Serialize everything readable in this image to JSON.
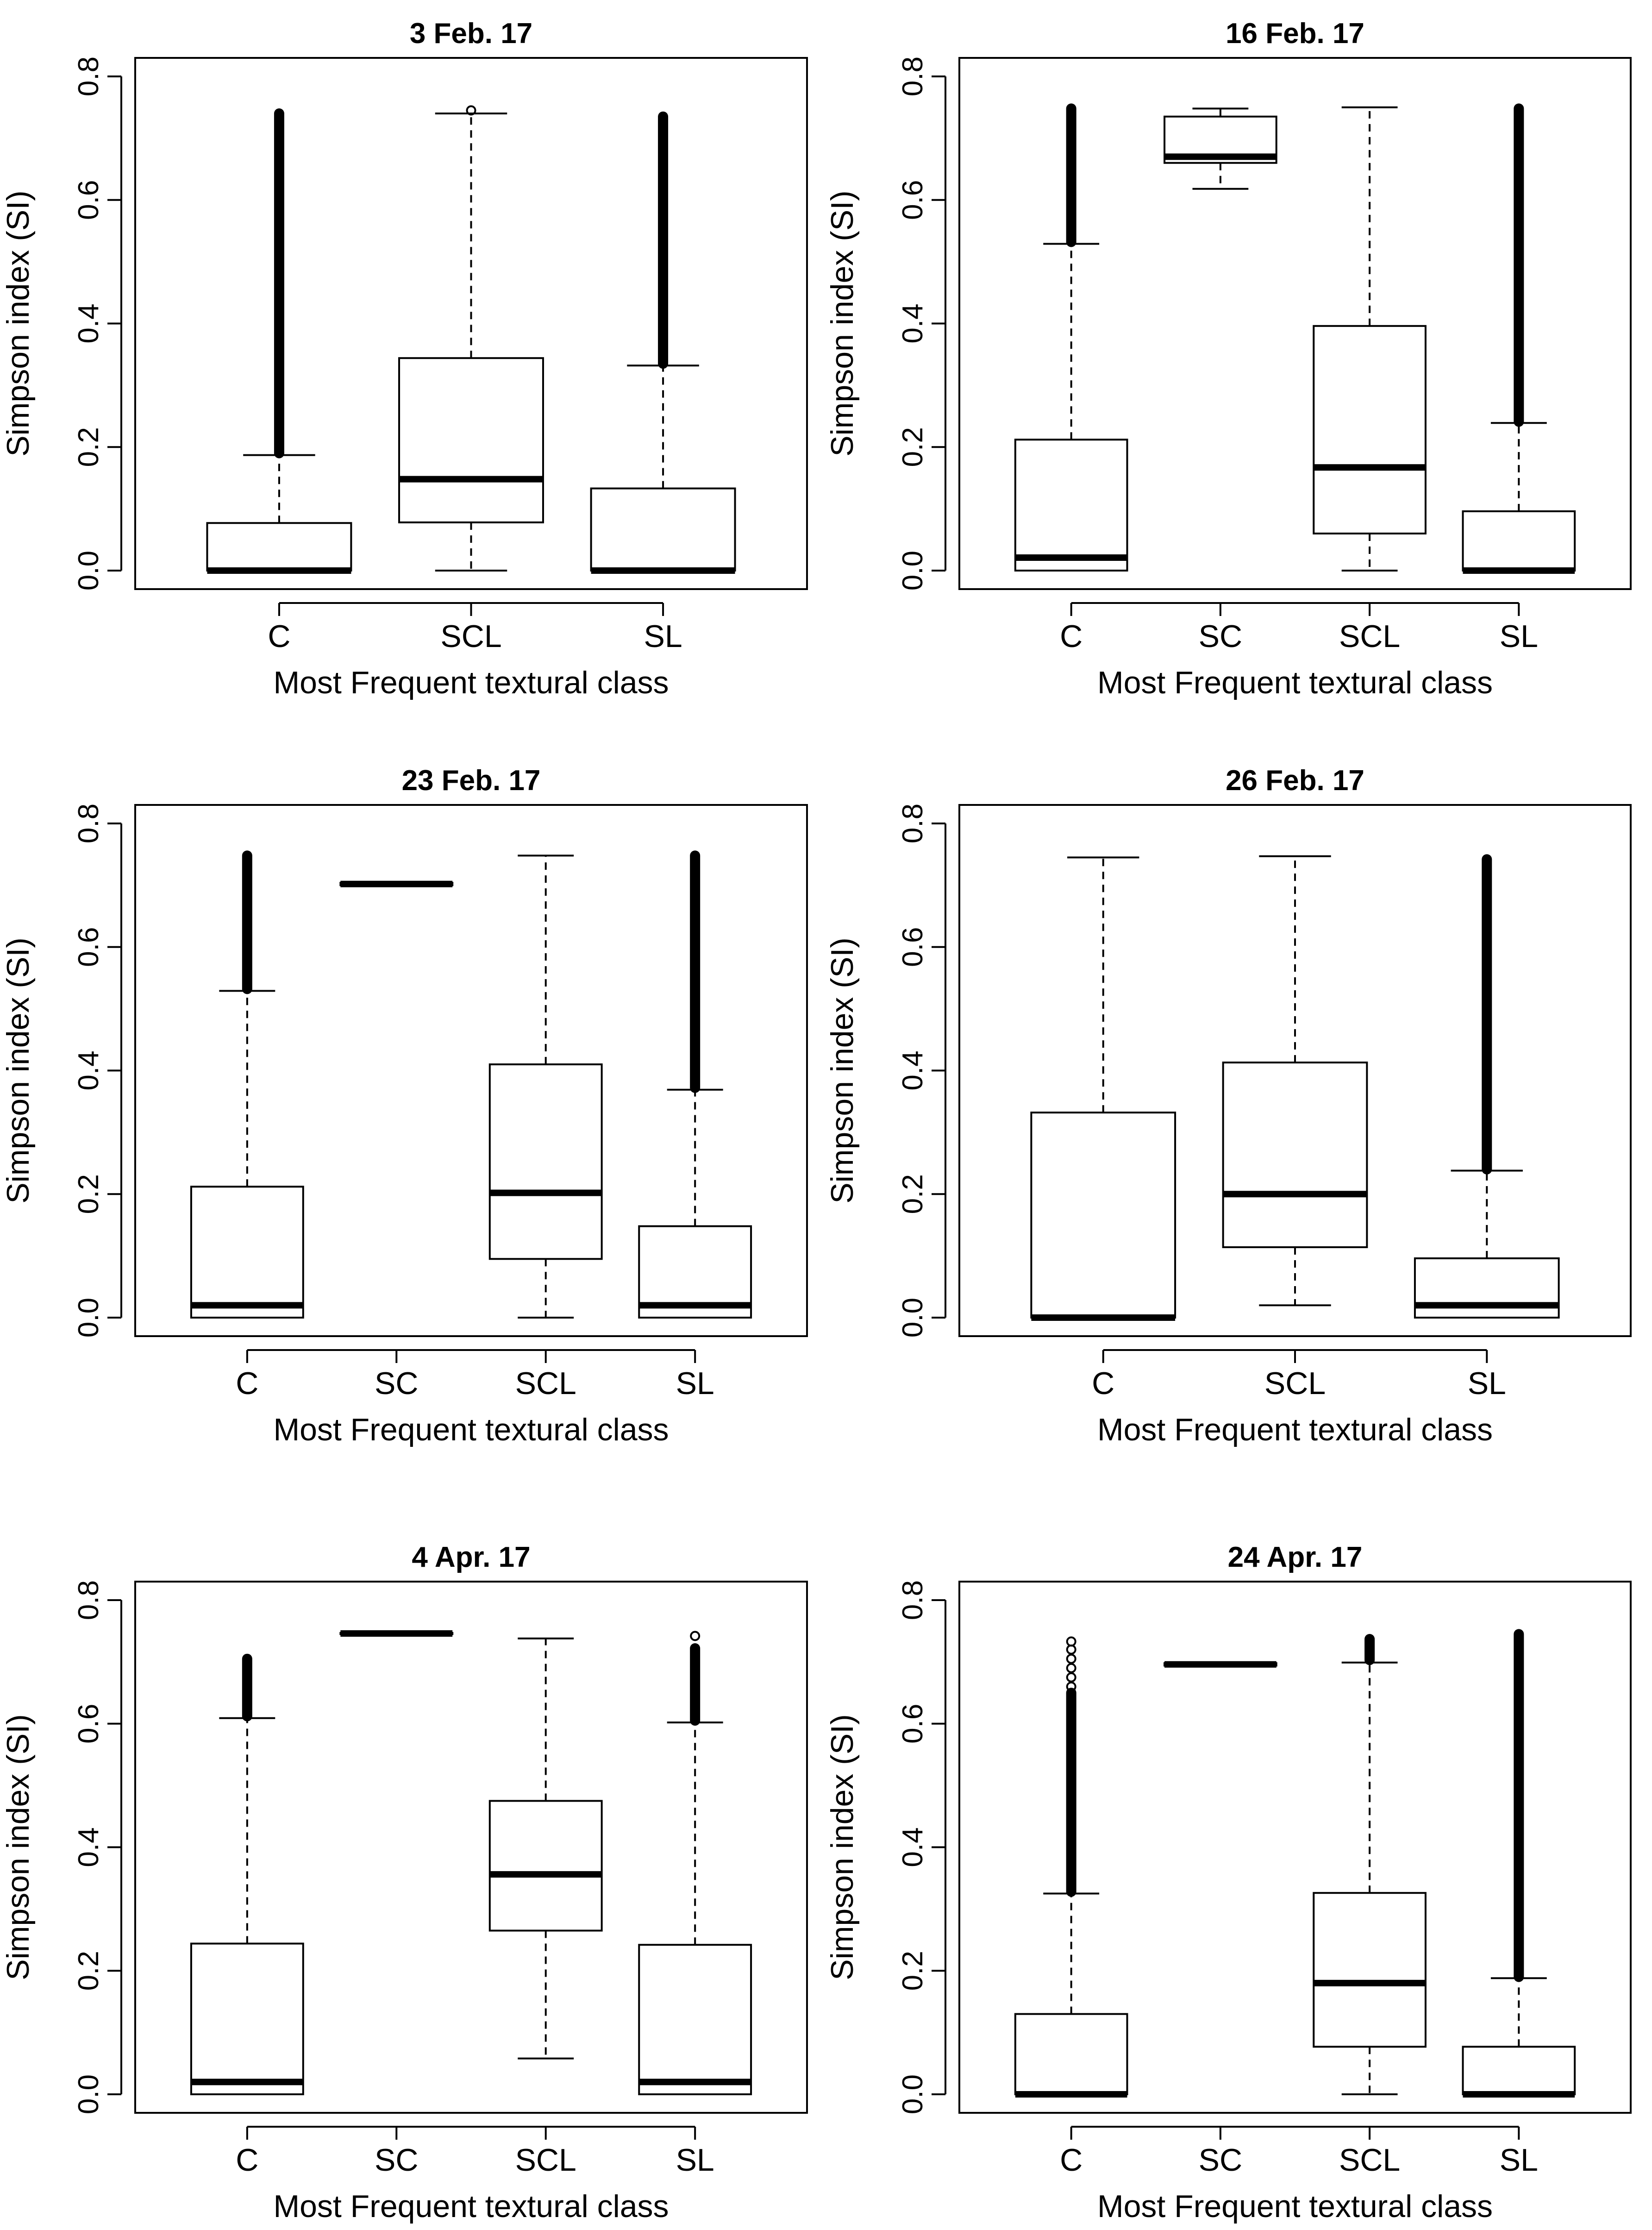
{
  "chart_data": [
    {
      "type": "boxplot",
      "title": "3 Feb. 17",
      "xlabel": "Most Frequent textural class",
      "ylabel": "Simpson index (SI)",
      "ylim": [
        -0.03,
        0.83
      ],
      "yticks": [
        "0.0",
        "0.2",
        "0.4",
        "0.6",
        "0.8"
      ],
      "categories": [
        "C",
        "SCL",
        "SL"
      ],
      "boxes": [
        {
          "q1": 0.0,
          "median": 0.0,
          "q3": 0.077,
          "whisker_low": 0.0,
          "whisker_high": 0.187,
          "outlier_low": 0.19,
          "outlier_high": 0.74,
          "dense_outliers": true
        },
        {
          "q1": 0.078,
          "median": 0.148,
          "q3": 0.344,
          "whisker_low": 0.0,
          "whisker_high": 0.74,
          "outlier_low": 0.745,
          "outlier_high": 0.745,
          "dense_outliers": false
        },
        {
          "q1": 0.0,
          "median": 0.0,
          "q3": 0.133,
          "whisker_low": 0.0,
          "whisker_high": 0.332,
          "outlier_low": 0.335,
          "outlier_high": 0.735,
          "dense_outliers": true
        }
      ]
    },
    {
      "type": "boxplot",
      "title": "16 Feb. 17",
      "xlabel": "Most Frequent textural class",
      "ylabel": "Simpson index (SI)",
      "ylim": [
        -0.03,
        0.83
      ],
      "yticks": [
        "0.0",
        "0.2",
        "0.4",
        "0.6",
        "0.8"
      ],
      "categories": [
        "C",
        "SC",
        "SCL",
        "SL"
      ],
      "boxes": [
        {
          "q1": 0.0,
          "median": 0.021,
          "q3": 0.212,
          "whisker_low": 0.0,
          "whisker_high": 0.529,
          "outlier_low": 0.532,
          "outlier_high": 0.748,
          "dense_outliers": true
        },
        {
          "q1": 0.66,
          "median": 0.67,
          "q3": 0.735,
          "whisker_low": 0.618,
          "whisker_high": 0.748,
          "outlier_low": null,
          "outlier_high": null,
          "dense_outliers": false
        },
        {
          "q1": 0.06,
          "median": 0.167,
          "q3": 0.396,
          "whisker_low": 0.0,
          "whisker_high": 0.75,
          "outlier_low": null,
          "outlier_high": null,
          "dense_outliers": false
        },
        {
          "q1": 0.0,
          "median": 0.0,
          "q3": 0.096,
          "whisker_low": 0.0,
          "whisker_high": 0.239,
          "outlier_low": 0.241,
          "outlier_high": 0.748,
          "dense_outliers": true
        }
      ]
    },
    {
      "type": "boxplot",
      "title": "23 Feb. 17",
      "xlabel": "Most Frequent textural class",
      "ylabel": "Simpson index (SI)",
      "ylim": [
        -0.03,
        0.83
      ],
      "yticks": [
        "0.0",
        "0.2",
        "0.4",
        "0.6",
        "0.8"
      ],
      "categories": [
        "C",
        "SC",
        "SCL",
        "SL"
      ],
      "boxes": [
        {
          "q1": 0.0,
          "median": 0.02,
          "q3": 0.212,
          "whisker_low": 0.0,
          "whisker_high": 0.529,
          "outlier_low": 0.532,
          "outlier_high": 0.748,
          "dense_outliers": true
        },
        {
          "q1": 0.7,
          "median": 0.702,
          "q3": 0.704,
          "whisker_low": 0.7,
          "whisker_high": 0.704,
          "outlier_low": null,
          "outlier_high": null,
          "dense_outliers": false
        },
        {
          "q1": 0.095,
          "median": 0.202,
          "q3": 0.41,
          "whisker_low": 0.0,
          "whisker_high": 0.748,
          "outlier_low": null,
          "outlier_high": null,
          "dense_outliers": false
        },
        {
          "q1": 0.0,
          "median": 0.02,
          "q3": 0.148,
          "whisker_low": 0.0,
          "whisker_high": 0.369,
          "outlier_low": 0.372,
          "outlier_high": 0.748,
          "dense_outliers": true
        }
      ]
    },
    {
      "type": "boxplot",
      "title": "26 Feb. 17",
      "xlabel": "Most Frequent textural class",
      "ylabel": "Simpson index (SI)",
      "ylim": [
        -0.03,
        0.83
      ],
      "yticks": [
        "0.0",
        "0.2",
        "0.4",
        "0.6",
        "0.8"
      ],
      "categories": [
        "C",
        "SCL",
        "SL"
      ],
      "boxes": [
        {
          "q1": 0.0,
          "median": 0.0,
          "q3": 0.332,
          "whisker_low": 0.0,
          "whisker_high": 0.745,
          "outlier_low": null,
          "outlier_high": null,
          "dense_outliers": false
        },
        {
          "q1": 0.114,
          "median": 0.2,
          "q3": 0.413,
          "whisker_low": 0.02,
          "whisker_high": 0.747,
          "outlier_low": null,
          "outlier_high": null,
          "dense_outliers": false
        },
        {
          "q1": 0.0,
          "median": 0.02,
          "q3": 0.096,
          "whisker_low": 0.0,
          "whisker_high": 0.238,
          "outlier_low": 0.24,
          "outlier_high": 0.742,
          "dense_outliers": true
        }
      ]
    },
    {
      "type": "boxplot",
      "title": "4 Apr. 17",
      "xlabel": "Most Frequent textural class",
      "ylabel": "Simpson index (SI)",
      "ylim": [
        -0.03,
        0.83
      ],
      "yticks": [
        "0.0",
        "0.2",
        "0.4",
        "0.6",
        "0.8"
      ],
      "categories": [
        "C",
        "SC",
        "SCL",
        "SL"
      ],
      "boxes": [
        {
          "q1": 0.0,
          "median": 0.02,
          "q3": 0.244,
          "whisker_low": 0.0,
          "whisker_high": 0.609,
          "outlier_low": 0.612,
          "outlier_high": 0.705,
          "dense_outliers": true
        },
        {
          "q1": 0.745,
          "median": 0.746,
          "q3": 0.747,
          "whisker_low": 0.745,
          "whisker_high": 0.747,
          "outlier_low": null,
          "outlier_high": null,
          "dense_outliers": false
        },
        {
          "q1": 0.265,
          "median": 0.356,
          "q3": 0.475,
          "whisker_low": 0.058,
          "whisker_high": 0.738,
          "outlier_low": null,
          "outlier_high": null,
          "dense_outliers": false
        },
        {
          "q1": 0.0,
          "median": 0.02,
          "q3": 0.242,
          "whisker_low": 0.0,
          "whisker_high": 0.602,
          "outlier_low": 0.605,
          "outlier_high": 0.722,
          "dense_outliers": true,
          "extra_outliers": [
            0.742
          ]
        }
      ]
    },
    {
      "type": "boxplot",
      "title": "24 Apr. 17",
      "xlabel": "Most Frequent textural class",
      "ylabel": "Simpson index (SI)",
      "ylim": [
        -0.03,
        0.83
      ],
      "yticks": [
        "0.0",
        "0.2",
        "0.4",
        "0.6",
        "0.8"
      ],
      "categories": [
        "C",
        "SC",
        "SCL",
        "SL"
      ],
      "boxes": [
        {
          "q1": 0.0,
          "median": 0.0,
          "q3": 0.13,
          "whisker_low": 0.0,
          "whisker_high": 0.325,
          "outlier_low": 0.328,
          "outlier_high": 0.65,
          "dense_outliers": true,
          "extra_outliers": [
            0.66,
            0.675,
            0.69,
            0.705,
            0.72,
            0.733
          ]
        },
        {
          "q1": 0.694,
          "median": 0.696,
          "q3": 0.698,
          "whisker_low": 0.694,
          "whisker_high": 0.698,
          "outlier_low": null,
          "outlier_high": null,
          "dense_outliers": false
        },
        {
          "q1": 0.077,
          "median": 0.18,
          "q3": 0.326,
          "whisker_low": 0.0,
          "whisker_high": 0.699,
          "outlier_low": 0.703,
          "outlier_high": 0.737,
          "dense_outliers": true
        },
        {
          "q1": 0.0,
          "median": 0.0,
          "q3": 0.077,
          "whisker_low": 0.0,
          "whisker_high": 0.188,
          "outlier_low": 0.19,
          "outlier_high": 0.745,
          "dense_outliers": true
        }
      ]
    }
  ]
}
